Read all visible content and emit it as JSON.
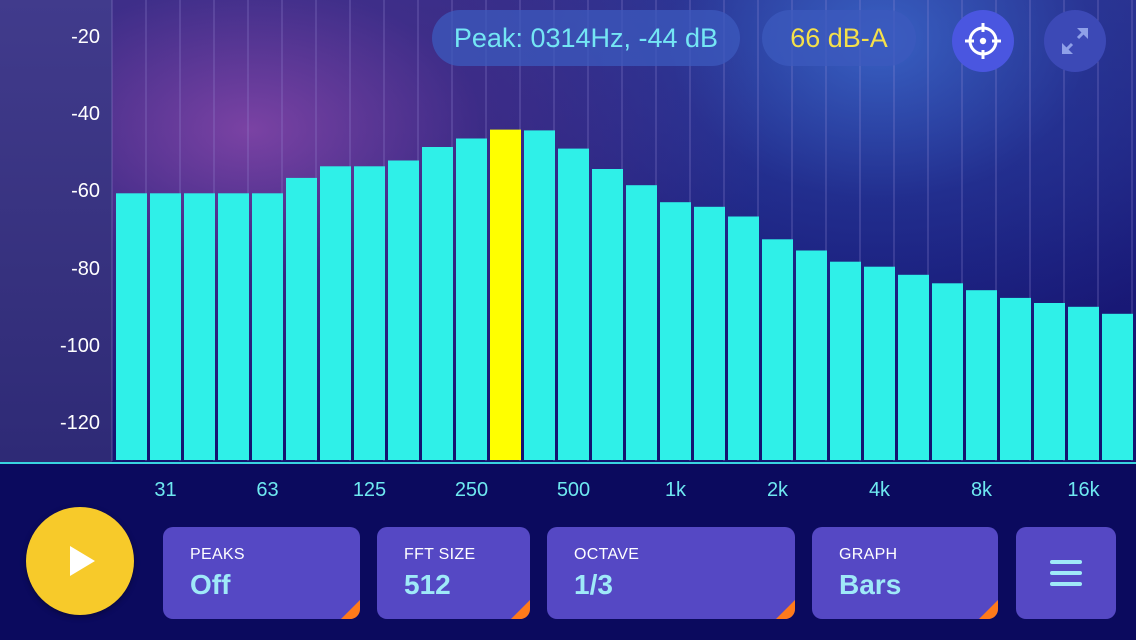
{
  "header": {
    "peak_readout": "Peak: 0314Hz, -44 dB",
    "level_readout": "66 dB-A"
  },
  "icons": {
    "target": "crosshair-target-icon",
    "expand": "expand-arrows-icon",
    "play": "play-icon",
    "menu": "hamburger-menu-icon"
  },
  "colors": {
    "bar": "#2ff0e8",
    "peak_bar": "#ffff00",
    "grid_line": "#9a8fd6"
  },
  "controls": {
    "peaks": {
      "label": "PEAKS",
      "value": "Off"
    },
    "fft_size": {
      "label": "FFT SIZE",
      "value": "512"
    },
    "octave": {
      "label": "OCTAVE",
      "value": "1/3"
    },
    "graph": {
      "label": "GRAPH",
      "value": "Bars"
    }
  },
  "chart_data": {
    "type": "bar",
    "ylim": [
      -130,
      -15
    ],
    "y_ticks": [
      "-20",
      "-40",
      "-60",
      "-80",
      "-100",
      "-120"
    ],
    "x_tick_labels": [
      "31",
      "63",
      "125",
      "250",
      "500",
      "1k",
      "2k",
      "4k",
      "8k",
      "16k"
    ],
    "values": [
      -60.5,
      -60.5,
      -60.5,
      -60.5,
      -60.5,
      -56.5,
      -53.5,
      -53.5,
      -52,
      -48.5,
      -46.3,
      -44,
      -44.2,
      -48.9,
      -54.2,
      -58.4,
      -62.8,
      -64,
      -66.5,
      -72.4,
      -75.3,
      -78.2,
      -79.5,
      -81.6,
      -83.8,
      -85.6,
      -87.6,
      -88.9,
      -89.9,
      -91.7
    ],
    "peak_index": 11,
    "grid": "vertical"
  }
}
